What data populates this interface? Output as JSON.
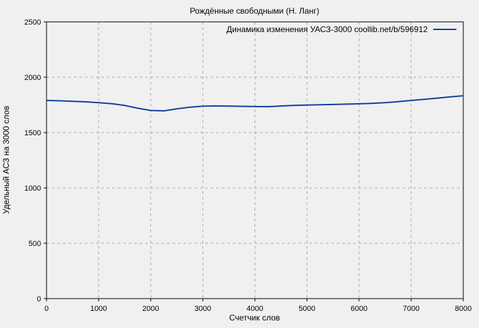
{
  "chart_data": {
    "type": "line",
    "title": "Рождённые свободными (Н. Ланг)",
    "xlabel": "Счетчик слов",
    "ylabel": "Удельный АСЗ на 3000 слов",
    "xlim": [
      0,
      8000
    ],
    "ylim": [
      0,
      2500
    ],
    "x_ticks": [
      0,
      1000,
      2000,
      3000,
      4000,
      5000,
      6000,
      7000,
      8000
    ],
    "y_ticks": [
      0,
      500,
      1000,
      1500,
      2000,
      2500
    ],
    "grid": true,
    "grid_style": "dashed",
    "legend_position": "top-right-inside",
    "series": [
      {
        "name": "Динамика изменения УАСЗ-3000 coollib.net/b/596912",
        "color": "#10419f",
        "x": [
          0,
          250,
          500,
          750,
          1000,
          1250,
          1500,
          1750,
          2000,
          2250,
          2500,
          2750,
          3000,
          3250,
          3500,
          3750,
          4000,
          4250,
          4500,
          4750,
          5000,
          5250,
          5500,
          5750,
          6000,
          6250,
          6500,
          6750,
          7000,
          7250,
          7500,
          7750,
          8000
        ],
        "y": [
          1790,
          1787,
          1783,
          1778,
          1770,
          1761,
          1745,
          1720,
          1700,
          1696,
          1714,
          1729,
          1738,
          1741,
          1739,
          1737,
          1735,
          1734,
          1740,
          1745,
          1749,
          1752,
          1754,
          1757,
          1760,
          1764,
          1770,
          1779,
          1790,
          1800,
          1811,
          1822,
          1833
        ]
      }
    ],
    "colors": {
      "background": "#f0f0f0",
      "border": "#000000",
      "grid": "#ababab",
      "series_blue": "#10419f",
      "text": "#000000"
    }
  }
}
